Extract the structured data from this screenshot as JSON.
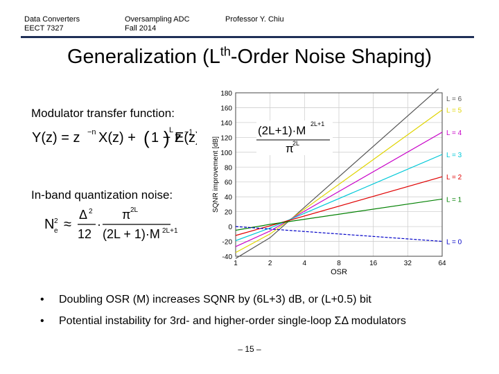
{
  "header": {
    "left": [
      "Data Converters",
      "EECT 7327"
    ],
    "middle": [
      "Oversampling ADC",
      "Fall 2014"
    ],
    "right": "Professor Y. Chiu"
  },
  "title": {
    "pre": "Generalization (L",
    "sup": "th",
    "post": "-Order Noise Shaping)"
  },
  "left_panel": {
    "modulator_label": "Modulator transfer function:",
    "noise_label": "In-band quantization noise:"
  },
  "chart_data": {
    "type": "line",
    "title": "",
    "xlabel": "OSR",
    "ylabel": "SQNR improvement [dB]",
    "x_scale": "log2",
    "x_ticks": [
      1,
      2,
      4,
      8,
      16,
      32,
      64
    ],
    "y_ticks": [
      -40,
      -20,
      0,
      20,
      40,
      60,
      80,
      100,
      120,
      140,
      160,
      180
    ],
    "ylim": [
      -40,
      180
    ],
    "grid": true,
    "legend": "right",
    "series": [
      {
        "name": "L = 6",
        "color": "#555555",
        "x": [
          1,
          2,
          64
        ],
        "y": [
          -43,
          -15,
          190
        ]
      },
      {
        "name": "L = 5",
        "color": "#e0d400",
        "x": [
          1,
          2,
          64
        ],
        "y": [
          -35,
          -10,
          157
        ]
      },
      {
        "name": "L = 4",
        "color": "#c800c8",
        "x": [
          1,
          2,
          64
        ],
        "y": [
          -27,
          -6,
          127
        ]
      },
      {
        "name": "L = 3",
        "color": "#00c8d8",
        "x": [
          1,
          2,
          64
        ],
        "y": [
          -19,
          -2,
          97
        ]
      },
      {
        "name": "L = 2",
        "color": "#e00000",
        "x": [
          1,
          2,
          64
        ],
        "y": [
          -12,
          1,
          67
        ]
      },
      {
        "name": "L = 1",
        "color": "#008000",
        "x": [
          1,
          2,
          64
        ],
        "y": [
          -5,
          3,
          37
        ]
      },
      {
        "name": "L = 0",
        "color": "#0000c8",
        "x": [
          1,
          64
        ],
        "y": [
          0,
          -20
        ]
      }
    ],
    "annotation": {
      "numerator": "(2L+1)·M",
      "num_sup": "2L+1",
      "denominator": "π",
      "den_sup": "2L"
    }
  },
  "bullets": [
    "Doubling OSR (M) increases SQNR by (6L+3) dB, or (L+0.5) bit",
    "Potential instability for 3rd- and higher-order single-loop ΣΔ modulators"
  ],
  "page_number": "– 15 –"
}
